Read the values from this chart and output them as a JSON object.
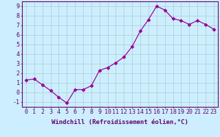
{
  "x": [
    0,
    1,
    2,
    3,
    4,
    5,
    6,
    7,
    8,
    9,
    10,
    11,
    12,
    13,
    14,
    15,
    16,
    17,
    18,
    19,
    20,
    21,
    22,
    23
  ],
  "y": [
    1.3,
    1.4,
    0.8,
    0.2,
    -0.5,
    -1.1,
    0.3,
    0.3,
    0.7,
    2.3,
    2.6,
    3.1,
    3.7,
    4.8,
    6.4,
    7.6,
    9.0,
    8.6,
    7.7,
    7.5,
    7.1,
    7.5,
    7.1,
    6.6
  ],
  "line_color": "#990099",
  "marker": "D",
  "marker_size": 2.5,
  "background_color": "#cceeff",
  "grid_color": "#aacccc",
  "axis_color": "#660066",
  "tick_color": "#660066",
  "xlabel": "Windchill (Refroidissement éolien,°C)",
  "xlim": [
    -0.5,
    23.5
  ],
  "ylim": [
    -1.5,
    9.5
  ],
  "yticks": [
    -1,
    0,
    1,
    2,
    3,
    4,
    5,
    6,
    7,
    8,
    9
  ],
  "xticks": [
    0,
    1,
    2,
    3,
    4,
    5,
    6,
    7,
    8,
    9,
    10,
    11,
    12,
    13,
    14,
    15,
    16,
    17,
    18,
    19,
    20,
    21,
    22,
    23
  ],
  "xlabel_fontsize": 6.5,
  "tick_fontsize": 6.0
}
